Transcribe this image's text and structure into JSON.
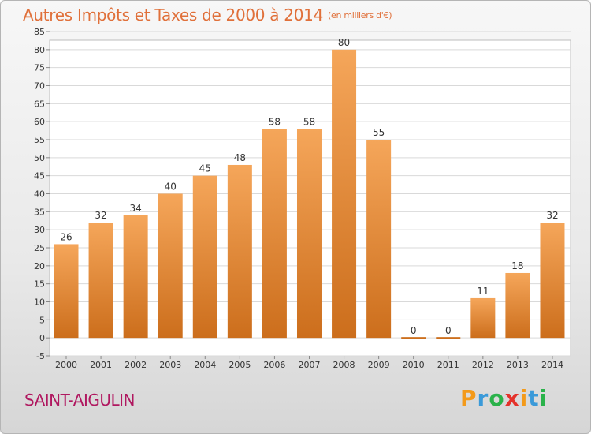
{
  "title": "Autres Impôts et Taxes de 2000 à 2014",
  "unit_note": "(en milliers d'€)",
  "commune": "SAINT-AIGULIN",
  "logo": {
    "letters": [
      "P",
      "r",
      "o",
      "x",
      "i",
      "t",
      "i"
    ],
    "colors": [
      "#f39a1a",
      "#3a9ad9",
      "#2ab24a",
      "#e4322b",
      "#f39a1a",
      "#3a9ad9",
      "#2ab24a"
    ]
  },
  "colors": {
    "bar_light": "#f5a65a",
    "bar_dark": "#cc6e1c",
    "title": "#e0703a"
  },
  "chart_data": {
    "type": "bar",
    "title": "Autres Impôts et Taxes de 2000 à 2014",
    "categories": [
      "2000",
      "2001",
      "2002",
      "2003",
      "2004",
      "2005",
      "2006",
      "2007",
      "2008",
      "2009",
      "2010",
      "2011",
      "2012",
      "2013",
      "2014"
    ],
    "values": [
      26,
      32,
      34,
      40,
      45,
      48,
      58,
      58,
      80,
      55,
      0,
      0,
      11,
      18,
      32
    ],
    "data_labels": [
      "26",
      "32",
      "34",
      "40",
      "45",
      "48",
      "58",
      "58",
      "80",
      "55",
      "0",
      "0",
      "11",
      "18",
      "32"
    ],
    "y_ticks": [
      -5,
      0,
      5,
      10,
      15,
      20,
      25,
      30,
      35,
      40,
      45,
      50,
      55,
      60,
      65,
      70,
      75,
      80,
      85
    ],
    "y_tick_labels": [
      "-5",
      "0",
      "5",
      "10",
      "15",
      "20",
      "25",
      "30",
      "35",
      "40",
      "45",
      "50",
      "55",
      "60",
      "65",
      "70",
      "75",
      "80",
      "85"
    ],
    "ylim": [
      -5,
      85
    ],
    "grid": true,
    "xlabel": "",
    "ylabel": ""
  }
}
